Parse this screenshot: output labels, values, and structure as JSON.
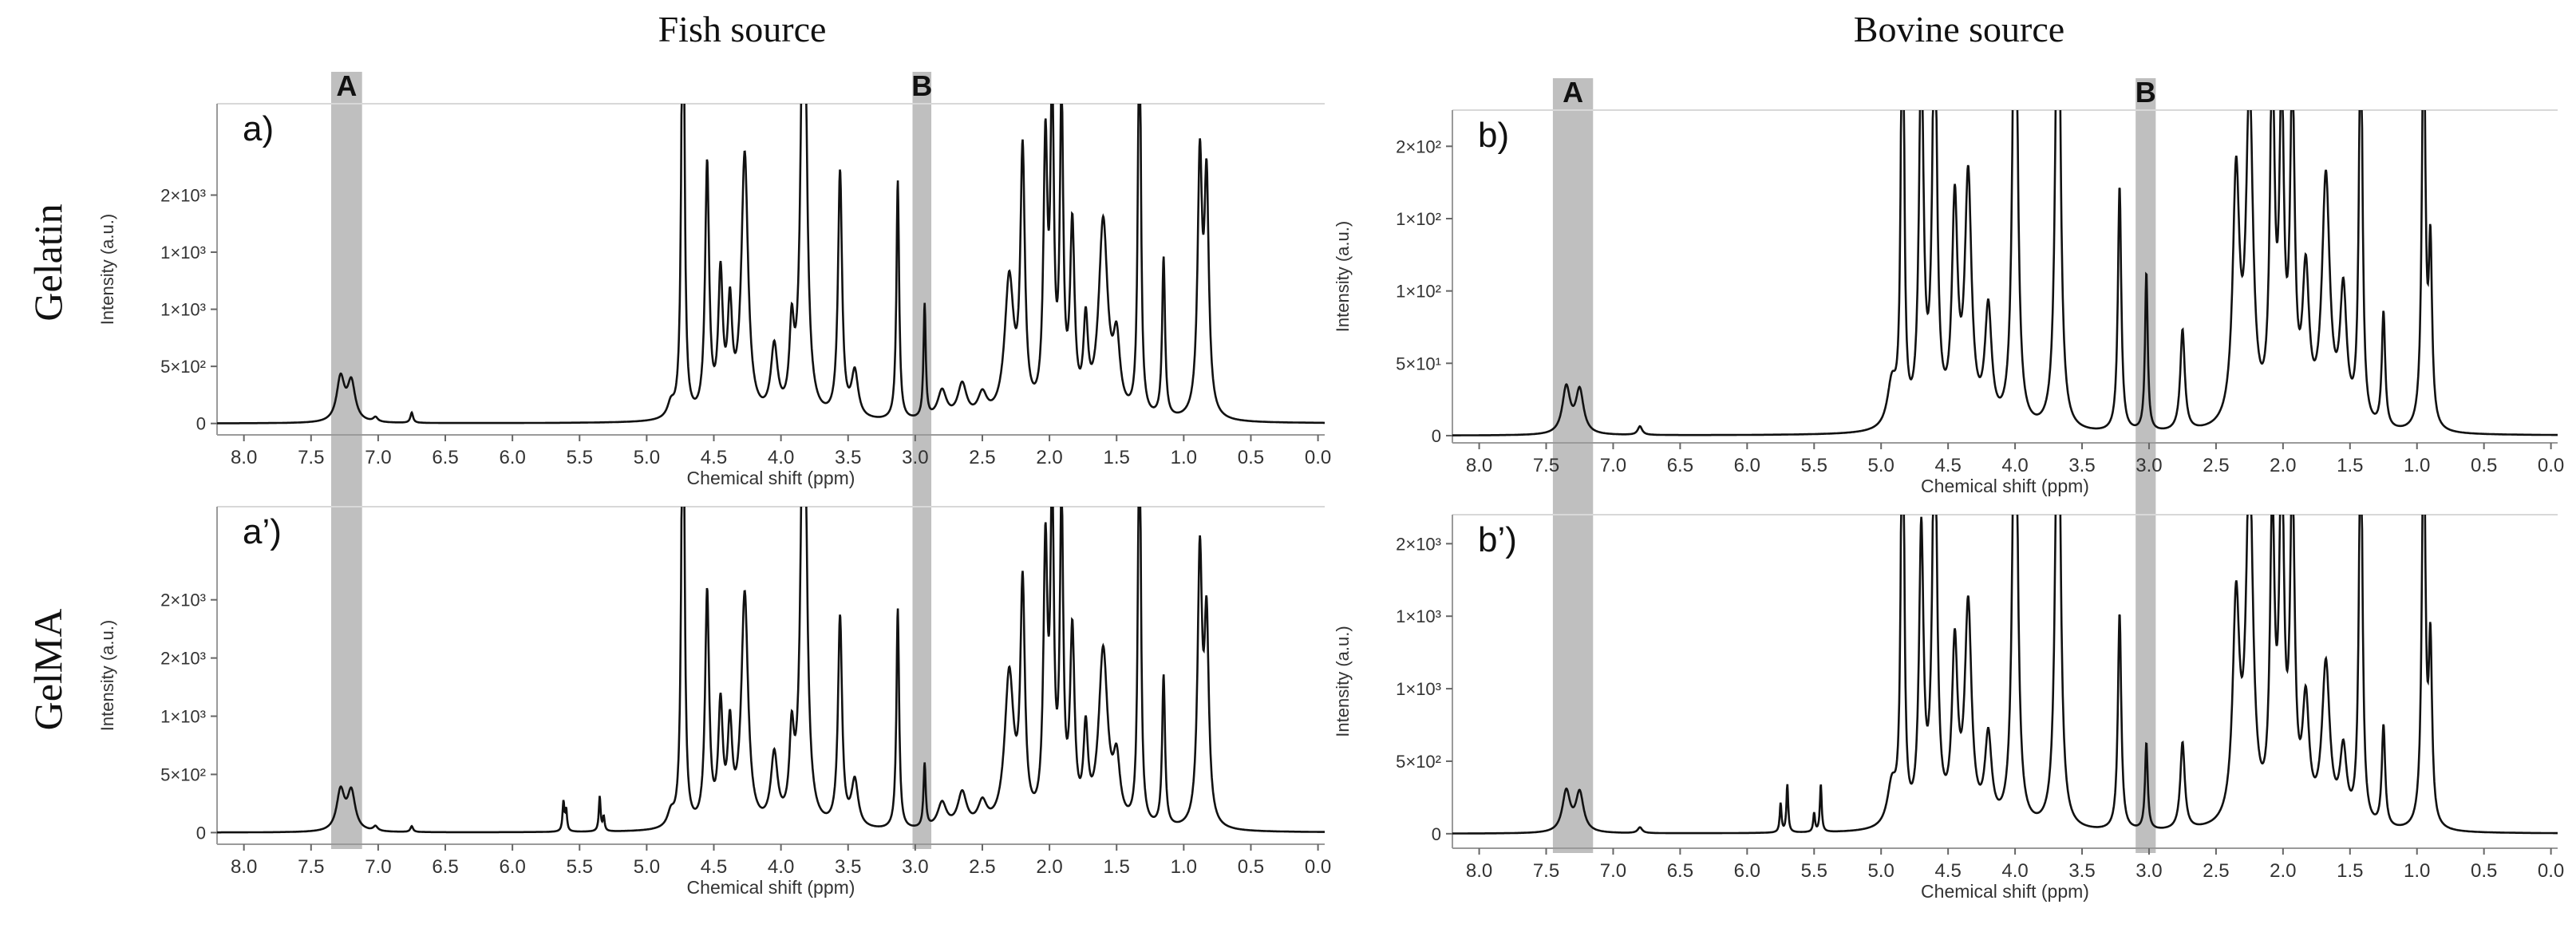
{
  "column_titles": [
    "Fish source",
    "Bovine source"
  ],
  "row_titles": [
    "Gelatin",
    "GelMA"
  ],
  "region_labels": [
    "A",
    "B"
  ],
  "chart_data": [
    {
      "type": "line",
      "panel_label": "a)",
      "xlabel": "Chemical shift (ppm)",
      "ylabel": "Intensity (a.u.)",
      "xlim": [
        8.2,
        -0.05
      ],
      "x_reversed": true,
      "xticks": [
        "8.0",
        "7.5",
        "7.0",
        "6.5",
        "6.0",
        "5.5",
        "5.0",
        "4.5",
        "4.0",
        "3.5",
        "3.0",
        "2.5",
        "2.0",
        "1.5",
        "1.0",
        "0.5",
        "0.0"
      ],
      "ylim": [
        -100,
        2800
      ],
      "yticks": [
        {
          "v": 0,
          "t": "0"
        },
        {
          "v": 500,
          "t": "5×10²"
        },
        {
          "v": 1000,
          "t": "1×10³"
        },
        {
          "v": 1500,
          "t": "1×10³"
        },
        {
          "v": 2000,
          "t": "2×10³"
        }
      ],
      "highlight_regions": [
        {
          "label": "A",
          "x": [
            7.35,
            7.12
          ]
        },
        {
          "label": "B",
          "x": [
            3.02,
            2.88
          ]
        }
      ],
      "peaks": [
        [
          7.28,
          380,
          0.035
        ],
        [
          7.2,
          340,
          0.035
        ],
        [
          7.02,
          40,
          0.02
        ],
        [
          6.75,
          90,
          0.012
        ],
        [
          4.82,
          120,
          0.03
        ],
        [
          4.73,
          5000,
          0.012
        ],
        [
          4.55,
          2200,
          0.018
        ],
        [
          4.45,
          1200,
          0.02
        ],
        [
          4.38,
          900,
          0.02
        ],
        [
          4.27,
          2300,
          0.03
        ],
        [
          4.05,
          600,
          0.03
        ],
        [
          3.92,
          700,
          0.02
        ],
        [
          3.83,
          5000,
          0.022
        ],
        [
          3.56,
          2150,
          0.018
        ],
        [
          3.45,
          400,
          0.03
        ],
        [
          3.13,
          2100,
          0.012
        ],
        [
          2.93,
          1000,
          0.01
        ],
        [
          2.8,
          250,
          0.04
        ],
        [
          2.65,
          300,
          0.04
        ],
        [
          2.5,
          200,
          0.04
        ],
        [
          2.3,
          1200,
          0.04
        ],
        [
          2.2,
          2250,
          0.02
        ],
        [
          2.03,
          2300,
          0.018
        ],
        [
          1.98,
          2800,
          0.015
        ],
        [
          1.91,
          2700,
          0.015
        ],
        [
          1.83,
          1600,
          0.02
        ],
        [
          1.73,
          750,
          0.02
        ],
        [
          1.6,
          1700,
          0.04
        ],
        [
          1.5,
          600,
          0.03
        ],
        [
          1.33,
          4000,
          0.012
        ],
        [
          1.15,
          1400,
          0.013
        ],
        [
          0.88,
          2200,
          0.02
        ],
        [
          0.83,
          2000,
          0.02
        ]
      ]
    },
    {
      "type": "line",
      "panel_label": "b)",
      "xlabel": "Chemical shift (ppm)",
      "ylabel": "Intensity (a.u.)",
      "xlim": [
        8.2,
        -0.05
      ],
      "x_reversed": true,
      "xticks": [
        "8.0",
        "7.5",
        "7.0",
        "6.5",
        "6.0",
        "5.5",
        "5.0",
        "4.5",
        "4.0",
        "3.5",
        "3.0",
        "2.5",
        "2.0",
        "1.5",
        "1.0",
        "0.5",
        "0.0"
      ],
      "ylim": [
        -5,
        225
      ],
      "yticks": [
        {
          "v": 0,
          "t": "0"
        },
        {
          "v": 50,
          "t": "5×10¹"
        },
        {
          "v": 100,
          "t": "1×10²"
        },
        {
          "v": 150,
          "t": "1×10²"
        },
        {
          "v": 200,
          "t": "2×10²"
        }
      ],
      "highlight_regions": [
        {
          "label": "A",
          "x": [
            7.45,
            7.15
          ]
        },
        {
          "label": "B",
          "x": [
            3.1,
            2.95
          ]
        }
      ],
      "peaks": [
        [
          7.35,
          32,
          0.035
        ],
        [
          7.25,
          30,
          0.035
        ],
        [
          6.8,
          6,
          0.02
        ],
        [
          4.92,
          30,
          0.04
        ],
        [
          4.84,
          400,
          0.012
        ],
        [
          4.7,
          260,
          0.02
        ],
        [
          4.6,
          300,
          0.02
        ],
        [
          4.45,
          150,
          0.025
        ],
        [
          4.35,
          170,
          0.03
        ],
        [
          4.2,
          80,
          0.03
        ],
        [
          4.0,
          400,
          0.02
        ],
        [
          3.68,
          400,
          0.02
        ],
        [
          3.22,
          170,
          0.015
        ],
        [
          3.02,
          110,
          0.012
        ],
        [
          2.75,
          70,
          0.02
        ],
        [
          2.35,
          170,
          0.03
        ],
        [
          2.25,
          230,
          0.03
        ],
        [
          2.08,
          250,
          0.02
        ],
        [
          2.01,
          220,
          0.02
        ],
        [
          1.93,
          230,
          0.02
        ],
        [
          1.83,
          100,
          0.03
        ],
        [
          1.68,
          170,
          0.035
        ],
        [
          1.55,
          90,
          0.03
        ],
        [
          1.42,
          300,
          0.015
        ],
        [
          1.25,
          80,
          0.015
        ],
        [
          0.95,
          300,
          0.015
        ],
        [
          0.9,
          120,
          0.015
        ]
      ]
    },
    {
      "type": "line",
      "panel_label": "a’)",
      "xlabel": "Chemical shift (ppm)",
      "ylabel": "Intensity (a.u.)",
      "xlim": [
        8.2,
        -0.05
      ],
      "x_reversed": true,
      "xticks": [
        "8.0",
        "7.5",
        "7.0",
        "6.5",
        "6.0",
        "5.5",
        "5.0",
        "4.5",
        "4.0",
        "3.5",
        "3.0",
        "2.5",
        "2.0",
        "1.5",
        "1.0",
        "0.5",
        "0.0"
      ],
      "ylim": [
        -100,
        2800
      ],
      "yticks": [
        {
          "v": 0,
          "t": "0"
        },
        {
          "v": 500,
          "t": "5×10²"
        },
        {
          "v": 1000,
          "t": "1×10³"
        },
        {
          "v": 1500,
          "t": "2×10³"
        },
        {
          "v": 2000,
          "t": "2×10³"
        }
      ],
      "highlight_regions": [
        {
          "label": "A",
          "x": [
            7.35,
            7.12
          ]
        },
        {
          "label": "B",
          "x": [
            3.02,
            2.88
          ]
        }
      ],
      "peaks": [
        [
          7.28,
          340,
          0.035
        ],
        [
          7.2,
          330,
          0.035
        ],
        [
          7.02,
          40,
          0.02
        ],
        [
          6.75,
          50,
          0.012
        ],
        [
          5.62,
          250,
          0.008
        ],
        [
          5.6,
          180,
          0.008
        ],
        [
          5.35,
          300,
          0.008
        ],
        [
          5.32,
          120,
          0.008
        ],
        [
          4.82,
          120,
          0.03
        ],
        [
          4.73,
          5000,
          0.012
        ],
        [
          4.55,
          2000,
          0.018
        ],
        [
          4.45,
          1000,
          0.02
        ],
        [
          4.38,
          800,
          0.02
        ],
        [
          4.27,
          2000,
          0.03
        ],
        [
          4.05,
          600,
          0.03
        ],
        [
          3.92,
          700,
          0.02
        ],
        [
          3.83,
          5000,
          0.022
        ],
        [
          3.56,
          1800,
          0.018
        ],
        [
          3.45,
          400,
          0.03
        ],
        [
          3.13,
          1900,
          0.012
        ],
        [
          2.93,
          550,
          0.01
        ],
        [
          2.8,
          220,
          0.04
        ],
        [
          2.65,
          300,
          0.04
        ],
        [
          2.5,
          200,
          0.04
        ],
        [
          2.3,
          1300,
          0.04
        ],
        [
          2.2,
          2000,
          0.02
        ],
        [
          2.03,
          2300,
          0.018
        ],
        [
          1.98,
          2800,
          0.015
        ],
        [
          1.91,
          2700,
          0.015
        ],
        [
          1.83,
          1600,
          0.02
        ],
        [
          1.73,
          750,
          0.02
        ],
        [
          1.6,
          1500,
          0.04
        ],
        [
          1.5,
          500,
          0.03
        ],
        [
          1.33,
          4000,
          0.012
        ],
        [
          1.15,
          1300,
          0.013
        ],
        [
          0.88,
          2300,
          0.02
        ],
        [
          0.83,
          1700,
          0.02
        ]
      ]
    },
    {
      "type": "line",
      "panel_label": "b’)",
      "xlabel": "Chemical shift (ppm)",
      "ylabel": "Intensity (a.u.)",
      "xlim": [
        8.2,
        -0.05
      ],
      "x_reversed": true,
      "xticks": [
        "8.0",
        "7.5",
        "7.0",
        "6.5",
        "6.0",
        "5.5",
        "5.0",
        "4.5",
        "4.0",
        "3.5",
        "3.0",
        "2.5",
        "2.0",
        "1.5",
        "1.0",
        "0.5",
        "0.0"
      ],
      "ylim": [
        -100,
        2200
      ],
      "yticks": [
        {
          "v": 0,
          "t": "0"
        },
        {
          "v": 500,
          "t": "5×10²"
        },
        {
          "v": 1000,
          "t": "1×10³"
        },
        {
          "v": 1500,
          "t": "1×10³"
        },
        {
          "v": 2000,
          "t": "2×10³"
        }
      ],
      "highlight_regions": [
        {
          "label": "A",
          "x": [
            7.45,
            7.15
          ]
        },
        {
          "label": "B",
          "x": [
            3.1,
            2.95
          ]
        }
      ],
      "peaks": [
        [
          7.35,
          280,
          0.035
        ],
        [
          7.25,
          270,
          0.035
        ],
        [
          6.8,
          40,
          0.02
        ],
        [
          5.75,
          200,
          0.008
        ],
        [
          5.7,
          330,
          0.008
        ],
        [
          5.5,
          130,
          0.008
        ],
        [
          5.45,
          330,
          0.008
        ],
        [
          4.92,
          280,
          0.04
        ],
        [
          4.84,
          4000,
          0.012
        ],
        [
          4.7,
          2000,
          0.02
        ],
        [
          4.6,
          3000,
          0.02
        ],
        [
          4.45,
          1200,
          0.025
        ],
        [
          4.35,
          1500,
          0.03
        ],
        [
          4.2,
          600,
          0.03
        ],
        [
          4.0,
          4000,
          0.02
        ],
        [
          3.68,
          4000,
          0.02
        ],
        [
          3.22,
          1500,
          0.015
        ],
        [
          3.02,
          600,
          0.012
        ],
        [
          2.75,
          600,
          0.02
        ],
        [
          2.35,
          1500,
          0.03
        ],
        [
          2.25,
          2500,
          0.03
        ],
        [
          2.08,
          2100,
          0.02
        ],
        [
          2.01,
          2500,
          0.02
        ],
        [
          1.93,
          2300,
          0.02
        ],
        [
          1.83,
          800,
          0.03
        ],
        [
          1.68,
          1100,
          0.035
        ],
        [
          1.55,
          500,
          0.03
        ],
        [
          1.42,
          3000,
          0.015
        ],
        [
          1.25,
          700,
          0.015
        ],
        [
          0.95,
          3000,
          0.015
        ],
        [
          0.9,
          1200,
          0.015
        ]
      ]
    }
  ]
}
